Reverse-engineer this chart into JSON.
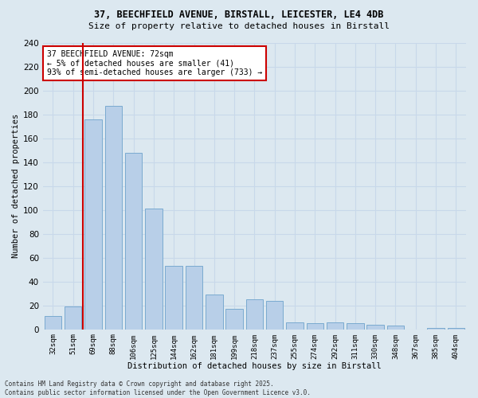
{
  "title_line1": "37, BEECHFIELD AVENUE, BIRSTALL, LEICESTER, LE4 4DB",
  "title_line2": "Size of property relative to detached houses in Birstall",
  "xlabel": "Distribution of detached houses by size in Birstall",
  "ylabel": "Number of detached properties",
  "categories": [
    "32sqm",
    "51sqm",
    "69sqm",
    "88sqm",
    "106sqm",
    "125sqm",
    "144sqm",
    "162sqm",
    "181sqm",
    "199sqm",
    "218sqm",
    "237sqm",
    "255sqm",
    "274sqm",
    "292sqm",
    "311sqm",
    "330sqm",
    "348sqm",
    "367sqm",
    "385sqm",
    "404sqm"
  ],
  "values": [
    11,
    19,
    176,
    187,
    148,
    101,
    53,
    53,
    29,
    17,
    25,
    24,
    6,
    5,
    6,
    5,
    4,
    3,
    0,
    1,
    1
  ],
  "bar_color": "#b8cfe8",
  "bar_edge_color": "#7aaad0",
  "property_line_index": 2,
  "annotation_text": "37 BEECHFIELD AVENUE: 72sqm\n← 5% of detached houses are smaller (41)\n93% of semi-detached houses are larger (733) →",
  "annotation_box_color": "#ffffff",
  "annotation_box_edge_color": "#cc0000",
  "vline_color": "#cc0000",
  "grid_color": "#c8d8ea",
  "background_color": "#dce8f0",
  "footer_text": "Contains HM Land Registry data © Crown copyright and database right 2025.\nContains public sector information licensed under the Open Government Licence v3.0.",
  "ylim": [
    0,
    240
  ],
  "yticks": [
    0,
    20,
    40,
    60,
    80,
    100,
    120,
    140,
    160,
    180,
    200,
    220,
    240
  ]
}
